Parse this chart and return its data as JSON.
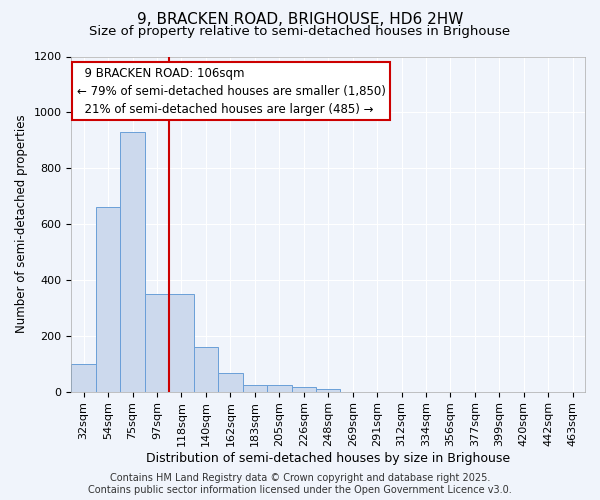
{
  "title": "9, BRACKEN ROAD, BRIGHOUSE, HD6 2HW",
  "subtitle": "Size of property relative to semi-detached houses in Brighouse",
  "xlabel": "Distribution of semi-detached houses by size in Brighouse",
  "ylabel": "Number of semi-detached properties",
  "bar_color": "#ccd9ed",
  "bar_edge_color": "#6a9fd8",
  "background_color": "#f0f4fb",
  "grid_color": "#ffffff",
  "categories": [
    "32sqm",
    "54sqm",
    "75sqm",
    "97sqm",
    "118sqm",
    "140sqm",
    "162sqm",
    "183sqm",
    "205sqm",
    "226sqm",
    "248sqm",
    "269sqm",
    "291sqm",
    "312sqm",
    "334sqm",
    "356sqm",
    "377sqm",
    "399sqm",
    "420sqm",
    "442sqm",
    "463sqm"
  ],
  "values": [
    100,
    660,
    930,
    350,
    350,
    160,
    65,
    25,
    25,
    15,
    10,
    0,
    0,
    0,
    0,
    0,
    0,
    0,
    0,
    0,
    0
  ],
  "ylim": [
    0,
    1200
  ],
  "yticks": [
    0,
    200,
    400,
    600,
    800,
    1000,
    1200
  ],
  "property_label": "9 BRACKEN ROAD: 106sqm",
  "pct_smaller": 79,
  "pct_smaller_n": "1,850",
  "pct_larger": 21,
  "pct_larger_n": 485,
  "vline_bin_index": 3,
  "annotation_box_color": "#ffffff",
  "annotation_box_edge": "#cc0000",
  "vline_color": "#cc0000",
  "footer_line1": "Contains HM Land Registry data © Crown copyright and database right 2025.",
  "footer_line2": "Contains public sector information licensed under the Open Government Licence v3.0.",
  "title_fontsize": 11,
  "subtitle_fontsize": 9.5,
  "xlabel_fontsize": 9,
  "ylabel_fontsize": 8.5,
  "tick_fontsize": 8,
  "footer_fontsize": 7,
  "annotation_fontsize": 8.5
}
